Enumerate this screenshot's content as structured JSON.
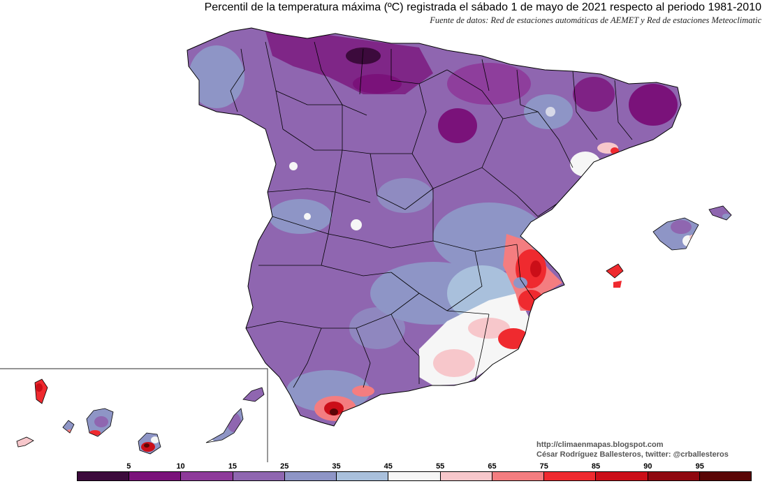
{
  "title": "Percentil de la temperatura máxima (ºC) registrada el sábado 1 de mayo de 2021 respecto al periodo 1981-2010",
  "subtitle": "Fuente de datos: Red de estaciones automáticas de AEMET y Red de estaciones Meteoclimatic",
  "credit": {
    "blog": "http://climaenmapas.blogspot.com",
    "author": "César Rodríguez Ballesteros, twitter: @crballesteros"
  },
  "legend": {
    "labels": [
      "5",
      "10",
      "15",
      "25",
      "35",
      "45",
      "55",
      "65",
      "75",
      "85",
      "90",
      "95"
    ],
    "colors": [
      "#3c0a3c",
      "#7a127a",
      "#8e3a9a",
      "#8f66b0",
      "#8e95c6",
      "#a9c0dc",
      "#f6f6f6",
      "#f7c7cb",
      "#f47d80",
      "#ef2a2f",
      "#cb0e18",
      "#8f0810",
      "#5a0606"
    ]
  },
  "palette": {
    "deep_purple": "#7a127a",
    "purple": "#8e3a9a",
    "lavender": "#8f66b0",
    "slate_blue": "#8e95c6",
    "light_blue": "#a9c0dc",
    "white": "#f6f6f6",
    "pink": "#f7c7cb",
    "salmon": "#f47d80",
    "red": "#ef2a2f",
    "dark_red": "#cb0e18",
    "maroon": "#8f0810"
  }
}
